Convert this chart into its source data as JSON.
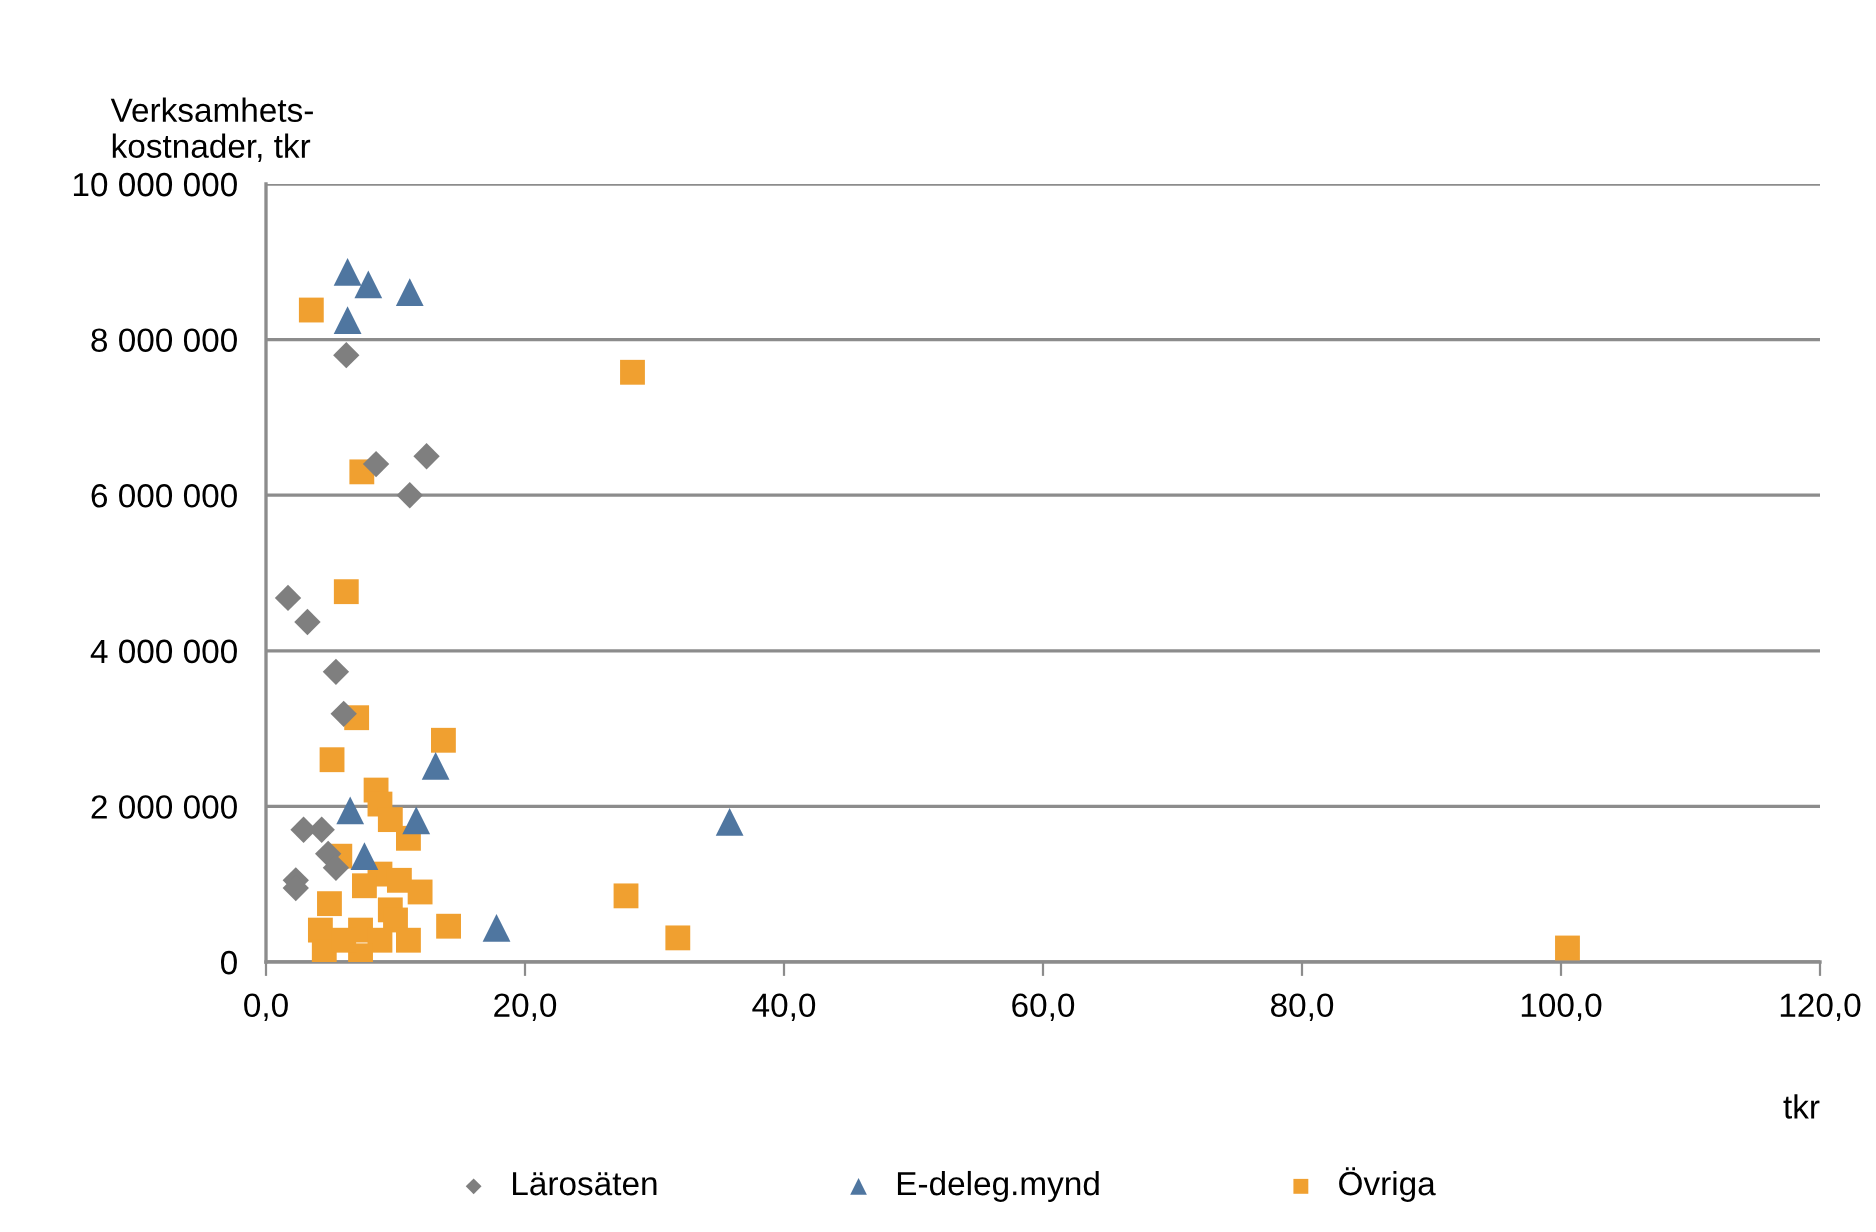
{
  "chart_data": {
    "type": "scatter",
    "ylabel": "Verksamhets-\nkostnader, tkr",
    "xlabel": "tkr",
    "xlim": [
      0,
      120
    ],
    "xticks": [
      {
        "value": 0,
        "label": "0,0"
      },
      {
        "value": 20,
        "label": "20,0"
      },
      {
        "value": 40,
        "label": "40,0"
      },
      {
        "value": 60,
        "label": "60,0"
      },
      {
        "value": 80,
        "label": "80,0"
      },
      {
        "value": 100,
        "label": "100,0"
      },
      {
        "value": 120,
        "label": "120,0"
      }
    ],
    "ylim": [
      0,
      10000000
    ],
    "yticks": [
      {
        "value": 0,
        "label": "0"
      },
      {
        "value": 2000000,
        "label": "2 000 000"
      },
      {
        "value": 4000000,
        "label": "4 000 000"
      },
      {
        "value": 6000000,
        "label": "6 000 000"
      },
      {
        "value": 8000000,
        "label": "8 000 000"
      },
      {
        "value": 10000000,
        "label": "10 000 000"
      }
    ],
    "grid": "y",
    "legend": "bottom",
    "series": [
      {
        "name": "Lärosäten",
        "color": "#7f7f7f",
        "marker": "diamond",
        "x": [
          6.2,
          8.5,
          12.4,
          11.1,
          1.7,
          3.2,
          5.4,
          6.0,
          2.9,
          4.3,
          4.8,
          5.4,
          2.3,
          2.3
        ],
        "values": [
          7800000,
          6400000,
          6500000,
          6000000,
          4680000,
          4370000,
          3730000,
          3190000,
          1700000,
          1700000,
          1390000,
          1210000,
          1050000,
          950000
        ]
      },
      {
        "name": "E-deleg.mynd",
        "color": "#4f76a0",
        "marker": "triangle",
        "x": [
          6.3,
          7.9,
          6.3,
          11.1,
          13.1,
          6.5,
          11.6,
          7.6,
          35.8,
          17.8
        ],
        "values": [
          8870000,
          8710000,
          8250000,
          8610000,
          2520000,
          1950000,
          1820000,
          1360000,
          1800000,
          440000
        ]
      },
      {
        "name": "Övriga",
        "color": "#f0a030",
        "marker": "square",
        "x": [
          3.5,
          28.3,
          7.4,
          6.2,
          7.0,
          13.7,
          5.1,
          8.5,
          8.8,
          9.6,
          11.0,
          5.7,
          8.8,
          10.3,
          11.9,
          7.6,
          4.9,
          9.6,
          10.0,
          14.1,
          4.2,
          7.3,
          8.8,
          11.0,
          4.5,
          7.3,
          27.8,
          31.8,
          100.5,
          6.0
        ],
        "values": [
          8380000,
          7580000,
          6300000,
          4760000,
          3140000,
          2850000,
          2600000,
          2210000,
          2030000,
          1830000,
          1590000,
          1360000,
          1130000,
          1050000,
          900000,
          980000,
          750000,
          670000,
          540000,
          460000,
          410000,
          410000,
          280000,
          280000,
          130000,
          80000,
          850000,
          310000,
          180000,
          280000
        ]
      }
    ]
  }
}
